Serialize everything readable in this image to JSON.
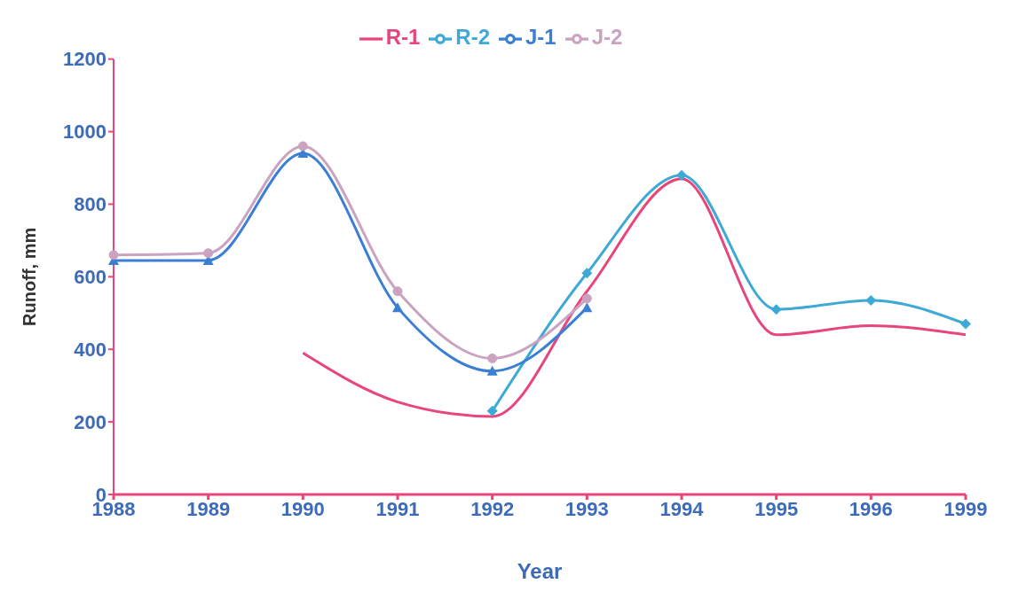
{
  "chart_data": {
    "type": "line",
    "xlabel": "Year",
    "ylabel": "Runoff, mm",
    "categories": [
      "1988",
      "1989",
      "1990",
      "1991",
      "1992",
      "1993",
      "1994",
      "1995",
      "1996",
      "1999"
    ],
    "ylim": [
      0,
      1200
    ],
    "yticks": [
      0,
      200,
      400,
      600,
      800,
      1000,
      1200
    ],
    "grid": false,
    "legend": "top",
    "series": [
      {
        "name": "R-1",
        "color": "#e8457a",
        "marker": "none",
        "values": [
          null,
          null,
          390,
          255,
          215,
          560,
          870,
          440,
          465,
          440
        ]
      },
      {
        "name": "R-2",
        "color": "#3fa9d6",
        "marker": "diamond",
        "values": [
          null,
          null,
          null,
          null,
          230,
          610,
          880,
          510,
          535,
          470
        ]
      },
      {
        "name": "J-1",
        "color": "#3b7fd4",
        "marker": "triangle",
        "values": [
          645,
          645,
          940,
          515,
          340,
          515,
          null,
          null,
          null,
          null
        ]
      },
      {
        "name": "J-2",
        "color": "#c9a3c0",
        "marker": "circle",
        "values": [
          660,
          665,
          960,
          560,
          375,
          540,
          null,
          null,
          null,
          null
        ]
      }
    ]
  }
}
